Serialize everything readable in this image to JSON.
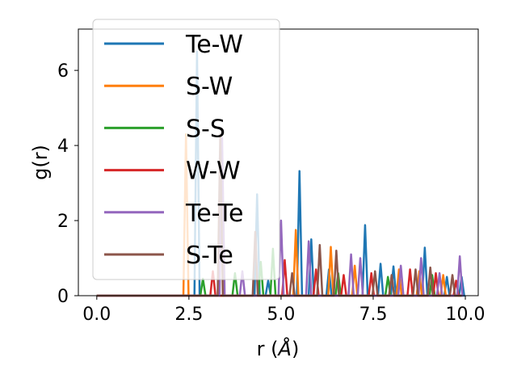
{
  "chart_data": {
    "type": "line",
    "title": "",
    "xlabel": "r (",
    "xlabel_unit": "Å",
    "xlabel_close": ")",
    "ylabel": "g(r)",
    "xlim": [
      -0.5,
      10.35
    ],
    "ylim": [
      0,
      7.1
    ],
    "xticks": [
      0.0,
      2.5,
      5.0,
      7.5,
      10.0
    ],
    "xtick_labels": [
      "0.0",
      "2.5",
      "5.0",
      "7.5",
      "10.0"
    ],
    "yticks": [
      0,
      2,
      4,
      6
    ],
    "ytick_labels": [
      "0",
      "2",
      "4",
      "6"
    ],
    "grid": false,
    "legend_position": "top-left",
    "series": [
      {
        "name": "Te-W",
        "color": "#1f77b4",
        "peaks": [
          [
            2.72,
            6.5
          ],
          [
            4.35,
            2.7
          ],
          [
            4.65,
            0.4
          ],
          [
            5.5,
            3.32
          ],
          [
            5.82,
            1.5
          ],
          [
            6.3,
            0.7
          ],
          [
            7.28,
            1.88
          ],
          [
            7.7,
            0.85
          ],
          [
            8.05,
            0.78
          ],
          [
            8.9,
            1.28
          ],
          [
            9.5,
            0.5
          ],
          [
            9.9,
            0.5
          ]
        ]
      },
      {
        "name": "S-W",
        "color": "#ff7f0e",
        "peaks": [
          [
            2.42,
            4.3
          ],
          [
            5.4,
            1.75
          ],
          [
            6.35,
            1.3
          ],
          [
            7.0,
            0.8
          ],
          [
            8.2,
            0.7
          ],
          [
            8.75,
            0.65
          ],
          [
            9.4,
            0.55
          ]
        ]
      },
      {
        "name": "S-S",
        "color": "#2ca02c",
        "peaks": [
          [
            2.88,
            0.45
          ],
          [
            3.75,
            0.6
          ],
          [
            4.45,
            0.9
          ],
          [
            4.78,
            1.25
          ],
          [
            6.55,
            0.6
          ],
          [
            7.9,
            0.5
          ],
          [
            9.1,
            0.55
          ]
        ]
      },
      {
        "name": "W-W",
        "color": "#d62728",
        "peaks": [
          [
            3.15,
            0.65
          ],
          [
            5.1,
            0.95
          ],
          [
            5.95,
            0.7
          ],
          [
            6.7,
            0.55
          ],
          [
            7.45,
            0.6
          ],
          [
            8.5,
            0.7
          ],
          [
            9.2,
            0.6
          ],
          [
            9.75,
            0.4
          ]
        ]
      },
      {
        "name": "Te-Te",
        "color": "#9467bd",
        "peaks": [
          [
            3.4,
            4.2
          ],
          [
            3.95,
            0.65
          ],
          [
            5.0,
            2.0
          ],
          [
            5.75,
            1.45
          ],
          [
            6.9,
            1.1
          ],
          [
            7.15,
            1.0
          ],
          [
            8.25,
            0.8
          ],
          [
            8.8,
            1.0
          ],
          [
            9.3,
            0.6
          ],
          [
            9.85,
            1.05
          ]
        ]
      },
      {
        "name": "S-Te",
        "color": "#8c564b",
        "peaks": [
          [
            3.35,
            4.3
          ],
          [
            4.3,
            1.7
          ],
          [
            5.3,
            0.6
          ],
          [
            6.05,
            1.35
          ],
          [
            6.5,
            1.2
          ],
          [
            7.55,
            0.65
          ],
          [
            8.0,
            0.55
          ],
          [
            8.65,
            0.7
          ],
          [
            9.05,
            0.75
          ],
          [
            9.65,
            0.55
          ]
        ]
      }
    ]
  }
}
